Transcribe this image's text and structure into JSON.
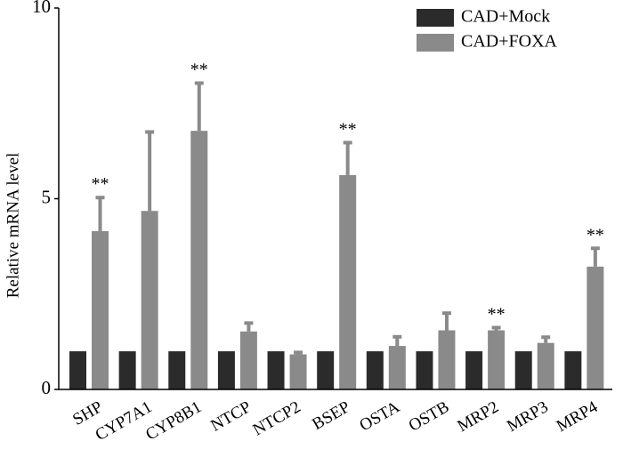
{
  "chart_data": {
    "type": "bar",
    "ylabel": "Relative mRNA level",
    "ylim": [
      0,
      10
    ],
    "yticks": [
      "0",
      "5",
      "10"
    ],
    "categories": [
      "SHP",
      "CYP7A1",
      "CYP8B1",
      "NTCP",
      "NTCP2",
      "BSEP",
      "OSTA",
      "OSTB",
      "MRP2",
      "MRP3",
      "MRP4"
    ],
    "series": [
      {
        "name": "CAD+Mock",
        "color": "#2b2b2b",
        "values": [
          1,
          1,
          1,
          1,
          1,
          1,
          1,
          1,
          1,
          1,
          1
        ]
      },
      {
        "name": "CAD+FOXA",
        "color": "#8a8a8a",
        "values": [
          4.15,
          4.68,
          6.78,
          1.52,
          0.92,
          5.62,
          1.14,
          1.55,
          1.55,
          1.22,
          3.22
        ],
        "errors": [
          0.88,
          2.07,
          1.25,
          0.22,
          0.05,
          0.85,
          0.24,
          0.45,
          0.07,
          0.15,
          0.48
        ]
      }
    ],
    "significance": [
      "**",
      "",
      "**",
      "",
      "",
      "**",
      "",
      "",
      "**",
      "",
      "**"
    ],
    "legend_position": "top-right",
    "grid": false
  }
}
